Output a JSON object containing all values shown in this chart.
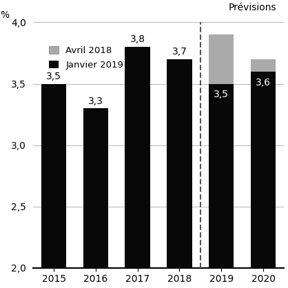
{
  "years": [
    "2015",
    "2016",
    "2017",
    "2018",
    "2019",
    "2020"
  ],
  "janvier_2019": [
    3.5,
    3.3,
    3.8,
    3.7,
    3.5,
    3.6
  ],
  "avril_2018": [
    0,
    0,
    0,
    0,
    3.9,
    3.7
  ],
  "bar_color_black": "#080808",
  "bar_color_gray": "#aaaaaa",
  "ylabel": "%",
  "ylim": [
    2.0,
    4.0
  ],
  "yticks": [
    2.0,
    2.5,
    3.0,
    3.5,
    4.0
  ],
  "ytick_labels": [
    "2,0",
    "2,5",
    "3,0",
    "3,5",
    "4,0"
  ],
  "legend_label_gray": "Avril 2018",
  "legend_label_black": "Janvier 2019",
  "previsions_label": "Prévisions",
  "bar_labels": [
    "3,5",
    "3,3",
    "3,8",
    "3,7",
    "3,5",
    "3,6"
  ],
  "bar_label_colors": [
    "black",
    "black",
    "black",
    "black",
    "white",
    "white"
  ],
  "bar_width": 0.6,
  "background_color": "#ffffff"
}
